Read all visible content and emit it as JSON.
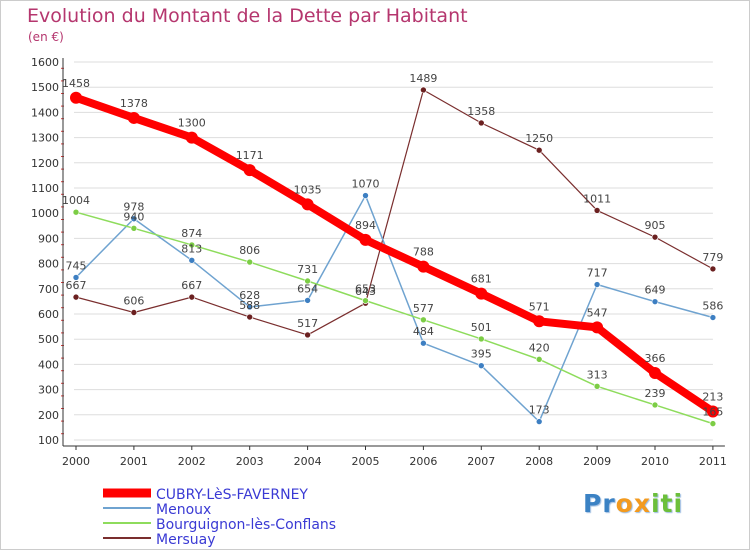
{
  "title": "Evolution du Montant de la Dette par Habitant",
  "unit_label": "(en €)",
  "logo": {
    "text_a": "Pr",
    "text_b": "ox",
    "text_c": "iti"
  },
  "chart_data": {
    "type": "line",
    "title": "Evolution du Montant de la Dette par Habitant",
    "ylabel": "(en €)",
    "xlabel": "",
    "x": [
      "2000",
      "2001",
      "2002",
      "2003",
      "2004",
      "2005",
      "2006",
      "2007",
      "2008",
      "2009",
      "2010",
      "2011"
    ],
    "ylim": [
      100,
      1600
    ],
    "yticks": [
      100,
      200,
      300,
      400,
      500,
      600,
      700,
      800,
      900,
      1000,
      1100,
      1200,
      1300,
      1400,
      1500,
      1600
    ],
    "grid": "horizontal",
    "legend_position": "bottom-left",
    "series": [
      {
        "name": "CUBRY-LèS-FAVERNEY",
        "color": "#ff0000",
        "marker_color": "#ff0000",
        "width": 8,
        "values": [
          1458,
          1378,
          1300,
          1171,
          1035,
          894,
          788,
          681,
          571,
          547,
          366,
          213
        ]
      },
      {
        "name": "Menoux",
        "color": "#6fa3d0",
        "marker_color": "#3d7fc2",
        "width": 1.5,
        "values": [
          745,
          978,
          813,
          628,
          654,
          1070,
          484,
          395,
          173,
          717,
          649,
          586
        ]
      },
      {
        "name": "Bourguignon-lès-Conflans",
        "color": "#8edc5c",
        "marker_color": "#7ccd45",
        "width": 1.5,
        "values": [
          1004,
          940,
          874,
          806,
          731,
          653,
          577,
          501,
          420,
          313,
          239,
          165
        ]
      },
      {
        "name": "Mersuay",
        "color": "#7a2e2e",
        "marker_color": "#6b2020",
        "width": 1.2,
        "values": [
          667,
          606,
          667,
          588,
          517,
          643,
          1489,
          1358,
          1250,
          1011,
          905,
          779
        ]
      }
    ],
    "data_labels": [
      [
        "1458",
        "1378",
        "1300",
        "1171",
        "1035",
        "894",
        "788",
        "681",
        "571",
        "547",
        "366",
        "213"
      ],
      [
        "745",
        "978",
        "813",
        "628",
        "654",
        "1070",
        "484",
        "395",
        "173",
        "717",
        "649",
        "586"
      ],
      [
        "1004",
        "940",
        "874",
        "806",
        "731",
        "653",
        "577",
        "501",
        "420",
        "313",
        "239",
        "165"
      ],
      [
        "667",
        "606",
        "667",
        "588",
        "517",
        "643",
        "1489",
        "1358",
        "1250",
        "1011",
        "905",
        "779"
      ]
    ]
  }
}
